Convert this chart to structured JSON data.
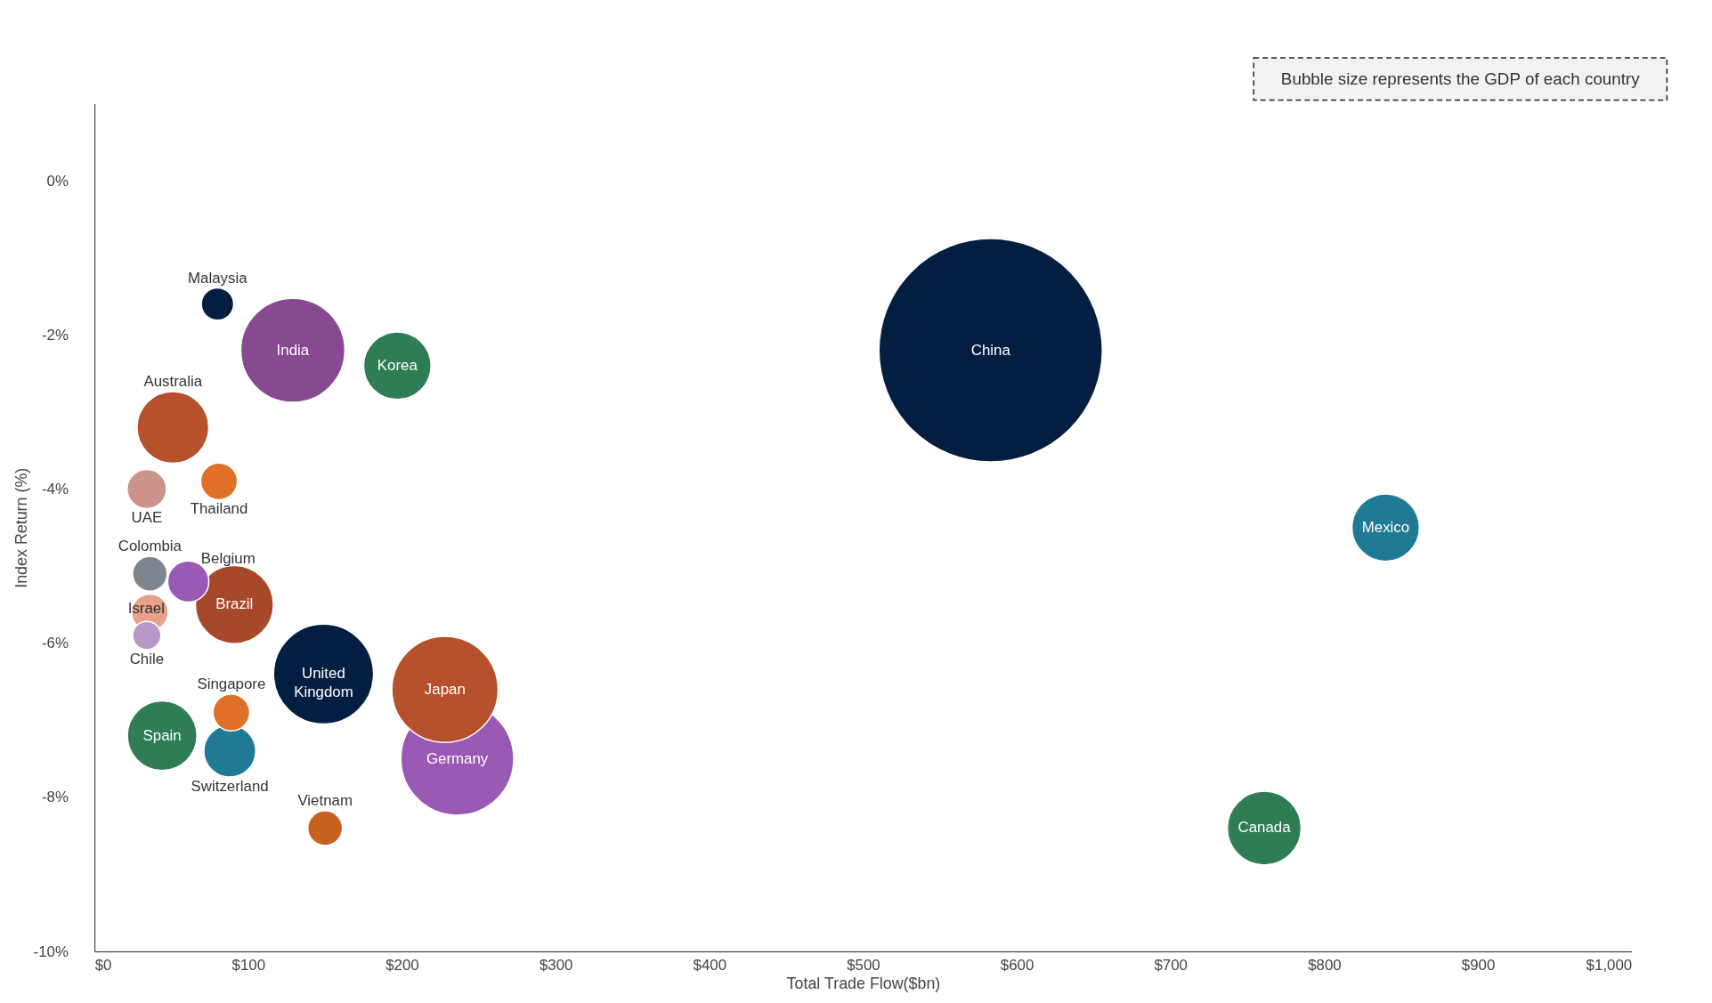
{
  "chart_data": {
    "type": "bubble",
    "xlabel": "Total Trade Flow($bn)",
    "ylabel": "Index Return (%)",
    "xlim": [
      0,
      1000
    ],
    "ylim": [
      -10,
      1
    ],
    "xticks": [
      {
        "value": 0,
        "label": "$0"
      },
      {
        "value": 100,
        "label": "$100"
      },
      {
        "value": 200,
        "label": "$200"
      },
      {
        "value": 300,
        "label": "$300"
      },
      {
        "value": 400,
        "label": "$400"
      },
      {
        "value": 500,
        "label": "$500"
      },
      {
        "value": 600,
        "label": "$600"
      },
      {
        "value": 700,
        "label": "$700"
      },
      {
        "value": 800,
        "label": "$800"
      },
      {
        "value": 900,
        "label": "$900"
      },
      {
        "value": 1000,
        "label": "$1,000"
      }
    ],
    "yticks": [
      {
        "value": -10,
        "label": "-10%"
      },
      {
        "value": -8,
        "label": "-8%"
      },
      {
        "value": -6,
        "label": "-6%"
      },
      {
        "value": -4,
        "label": "-4%"
      },
      {
        "value": -2,
        "label": "-2%"
      },
      {
        "value": 0,
        "label": "0%"
      }
    ],
    "grid": false,
    "legend": false,
    "annotations": [
      "Bubble size represents the GDP of each country"
    ],
    "series": [
      {
        "name": "Malaysia",
        "color": "#041e42",
        "x": [
          80
        ],
        "values": [
          -1.6
        ],
        "sizes": [
          0.021
        ]
      },
      {
        "name": "India",
        "color": "#87498f",
        "x": [
          129
        ],
        "values": [
          -2.2
        ],
        "sizes": [
          0.217
        ]
      },
      {
        "name": "Korea",
        "color": "#2e7d55",
        "x": [
          197
        ],
        "values": [
          -2.4
        ],
        "sizes": [
          0.091
        ]
      },
      {
        "name": "China",
        "color": "#041e42",
        "x": [
          583
        ],
        "values": [
          -2.2
        ],
        "sizes": [
          1
        ]
      },
      {
        "name": "Australia",
        "color": "#b7502d",
        "x": [
          51
        ],
        "values": [
          -3.2
        ],
        "sizes": [
          0.103
        ]
      },
      {
        "name": "Thailand",
        "color": "#e07027",
        "x": [
          81
        ],
        "values": [
          -3.9
        ],
        "sizes": [
          0.027
        ]
      },
      {
        "name": "UAE",
        "color": "#cc938a",
        "x": [
          34
        ],
        "values": [
          -4.0
        ],
        "sizes": [
          0.031
        ]
      },
      {
        "name": "Mexico",
        "color": "#1f7a96",
        "x": [
          840
        ],
        "values": [
          -4.5
        ],
        "sizes": [
          0.091
        ]
      },
      {
        "name": "Colombia",
        "color": "#7f858f",
        "x": [
          36
        ],
        "values": [
          -5.1
        ],
        "sizes": [
          0.024
        ]
      },
      {
        "name": "Belgium",
        "color": "#9b59b6",
        "x": [
          61
        ],
        "values": [
          -5.2
        ],
        "sizes": [
          0.034
        ]
      },
      {
        "name": "Brazil",
        "color": "#a6482a",
        "x": [
          91
        ],
        "values": [
          -5.5
        ],
        "sizes": [
          0.122
        ]
      },
      {
        "name": "Israel",
        "color": "#e9a08a",
        "x": [
          36
        ],
        "values": [
          -5.6
        ],
        "sizes": [
          0.027
        ]
      },
      {
        "name": "Chile",
        "color": "#b898c8",
        "x": [
          34
        ],
        "values": [
          -5.9
        ],
        "sizes": [
          0.016
        ]
      },
      {
        "name": "United Kingdom",
        "color": "#041e42",
        "x": [
          149
        ],
        "values": [
          -6.4
        ],
        "sizes": [
          0.2
        ]
      },
      {
        "name": "Japan",
        "color": "#b7502d",
        "x": [
          228
        ],
        "values": [
          -6.6
        ],
        "sizes": [
          0.226
        ]
      },
      {
        "name": "Singapore",
        "color": "#e07027",
        "x": [
          89
        ],
        "values": [
          -6.9
        ],
        "sizes": [
          0.027
        ]
      },
      {
        "name": "Spain",
        "color": "#2e7d55",
        "x": [
          44
        ],
        "values": [
          -7.2
        ],
        "sizes": [
          0.097
        ]
      },
      {
        "name": "Switzerland",
        "color": "#1f7a96",
        "x": [
          88
        ],
        "values": [
          -7.4
        ],
        "sizes": [
          0.054
        ]
      },
      {
        "name": "Germany",
        "color": "#9b59b6",
        "x": [
          236
        ],
        "values": [
          -7.5
        ],
        "sizes": [
          0.255
        ]
      },
      {
        "name": "Vietnam",
        "color": "#c8601f",
        "x": [
          150
        ],
        "values": [
          -8.4
        ],
        "sizes": [
          0.024
        ]
      },
      {
        "name": "Canada",
        "color": "#2e7d55",
        "x": [
          761
        ],
        "values": [
          -8.4
        ],
        "sizes": [
          0.109
        ]
      }
    ]
  }
}
